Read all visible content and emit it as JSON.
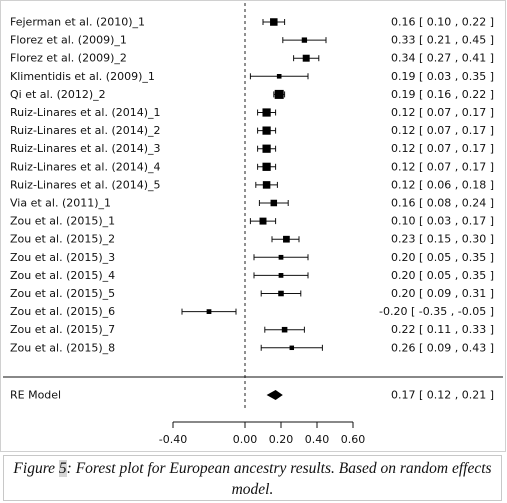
{
  "chart_data": {
    "type": "forest",
    "studies": [
      {
        "label": "Fejerman et al. (2010)_1",
        "est": 0.16,
        "lo": 0.1,
        "hi": 0.22,
        "text": "0.16 [ 0.10 ,  0.22 ]"
      },
      {
        "label": "Florez et al. (2009)_1",
        "est": 0.33,
        "lo": 0.21,
        "hi": 0.45,
        "text": "0.33 [ 0.21 ,  0.45 ]"
      },
      {
        "label": "Florez et al. (2009)_2",
        "est": 0.34,
        "lo": 0.27,
        "hi": 0.41,
        "text": "0.34 [ 0.27 ,  0.41 ]"
      },
      {
        "label": "Klimentidis et al. (2009)_1",
        "est": 0.19,
        "lo": 0.03,
        "hi": 0.35,
        "text": "0.19 [ 0.03 ,  0.35 ]"
      },
      {
        "label": "Qi et al. (2012)_2",
        "est": 0.19,
        "lo": 0.16,
        "hi": 0.22,
        "text": "0.19 [ 0.16 ,  0.22 ]"
      },
      {
        "label": "Ruiz-Linares et al. (2014)_1",
        "est": 0.12,
        "lo": 0.07,
        "hi": 0.17,
        "text": "0.12 [ 0.07 ,  0.17 ]"
      },
      {
        "label": "Ruiz-Linares et al. (2014)_2",
        "est": 0.12,
        "lo": 0.07,
        "hi": 0.17,
        "text": "0.12 [ 0.07 ,  0.17 ]"
      },
      {
        "label": "Ruiz-Linares et al. (2014)_3",
        "est": 0.12,
        "lo": 0.07,
        "hi": 0.17,
        "text": "0.12 [ 0.07 ,  0.17 ]"
      },
      {
        "label": "Ruiz-Linares et al. (2014)_4",
        "est": 0.12,
        "lo": 0.07,
        "hi": 0.17,
        "text": "0.12 [ 0.07 ,  0.17 ]"
      },
      {
        "label": "Ruiz-Linares et al. (2014)_5",
        "est": 0.12,
        "lo": 0.06,
        "hi": 0.18,
        "text": "0.12 [ 0.06 ,  0.18 ]"
      },
      {
        "label": "Via et al. (2011)_1",
        "est": 0.16,
        "lo": 0.08,
        "hi": 0.24,
        "text": "0.16 [ 0.08 ,  0.24 ]"
      },
      {
        "label": "Zou et al. (2015)_1",
        "est": 0.1,
        "lo": 0.03,
        "hi": 0.17,
        "text": "0.10 [ 0.03 ,  0.17 ]"
      },
      {
        "label": "Zou et al. (2015)_2",
        "est": 0.23,
        "lo": 0.15,
        "hi": 0.3,
        "text": "0.23 [ 0.15 ,  0.30 ]"
      },
      {
        "label": "Zou et al. (2015)_3",
        "est": 0.2,
        "lo": 0.05,
        "hi": 0.35,
        "text": "0.20 [ 0.05 ,  0.35 ]"
      },
      {
        "label": "Zou et al. (2015)_4",
        "est": 0.2,
        "lo": 0.05,
        "hi": 0.35,
        "text": "0.20 [ 0.05 ,  0.35 ]"
      },
      {
        "label": "Zou et al. (2015)_5",
        "est": 0.2,
        "lo": 0.09,
        "hi": 0.31,
        "text": "0.20 [ 0.09 ,  0.31 ]"
      },
      {
        "label": "Zou et al. (2015)_6",
        "est": -0.2,
        "lo": -0.35,
        "hi": -0.05,
        "text": "-0.20 [ -0.35 , -0.05 ]"
      },
      {
        "label": "Zou et al. (2015)_7",
        "est": 0.22,
        "lo": 0.11,
        "hi": 0.33,
        "text": "0.22 [ 0.11 ,  0.33 ]"
      },
      {
        "label": "Zou et al. (2015)_8",
        "est": 0.26,
        "lo": 0.09,
        "hi": 0.43,
        "text": "0.26 [ 0.09 ,  0.43 ]"
      }
    ],
    "summary": {
      "label": "RE Model",
      "est": 0.17,
      "lo": 0.12,
      "hi": 0.21,
      "text": "0.17 [ 0.12 ,  0.21 ]"
    },
    "x_ticks": [
      -0.4,
      0.0,
      0.2,
      0.4,
      0.6
    ],
    "x_tick_labels": [
      "-0.40",
      "0.00",
      "0.20",
      "0.40",
      "0.60"
    ],
    "xlim": [
      -0.4,
      0.6
    ],
    "reference_line": 0
  },
  "caption": {
    "prefix": "Figure ",
    "number": "5",
    "text": ": Forest plot for European ancestry results. Based on random effects model."
  }
}
